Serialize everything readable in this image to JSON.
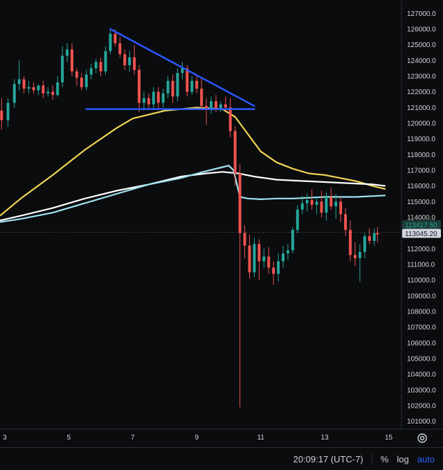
{
  "chart_data": {
    "type": "candlestick",
    "x_ticks": [
      "3",
      "5",
      "7",
      "9",
      "11",
      "13",
      "15"
    ],
    "y_ticks": [
      101000,
      102000,
      103000,
      104000,
      105000,
      106000,
      107000,
      108000,
      109000,
      110000,
      111000,
      112000,
      113000,
      114000,
      115000,
      116000,
      117000,
      118000,
      119000,
      120000,
      121000,
      122000,
      123000,
      124000,
      125000,
      126000,
      127000
    ],
    "ylim": [
      100500,
      127500
    ],
    "xlim": [
      2.85,
      15.4
    ],
    "candles": [
      {
        "t": 2.9,
        "o": 120800,
        "h": 121600,
        "l": 119600,
        "c": 120200
      },
      {
        "t": 3.1,
        "o": 120200,
        "h": 121600,
        "l": 119800,
        "c": 121300
      },
      {
        "t": 3.3,
        "o": 121300,
        "h": 122800,
        "l": 121000,
        "c": 122500
      },
      {
        "t": 3.45,
        "o": 122500,
        "h": 124000,
        "l": 122100,
        "c": 122800
      },
      {
        "t": 3.6,
        "o": 122800,
        "h": 123000,
        "l": 121900,
        "c": 122200
      },
      {
        "t": 3.75,
        "o": 122200,
        "h": 122700,
        "l": 121900,
        "c": 122300
      },
      {
        "t": 3.9,
        "o": 122300,
        "h": 122600,
        "l": 121900,
        "c": 122100
      },
      {
        "t": 4.05,
        "o": 122100,
        "h": 122500,
        "l": 121800,
        "c": 122400
      },
      {
        "t": 4.2,
        "o": 122400,
        "h": 122700,
        "l": 121600,
        "c": 121900
      },
      {
        "t": 4.35,
        "o": 121900,
        "h": 122300,
        "l": 121700,
        "c": 122000
      },
      {
        "t": 4.5,
        "o": 122000,
        "h": 122400,
        "l": 121500,
        "c": 121800
      },
      {
        "t": 4.65,
        "o": 121800,
        "h": 123000,
        "l": 121700,
        "c": 122600
      },
      {
        "t": 4.8,
        "o": 122600,
        "h": 124900,
        "l": 122300,
        "c": 124300
      },
      {
        "t": 4.95,
        "o": 124300,
        "h": 125100,
        "l": 123900,
        "c": 124700
      },
      {
        "t": 5.1,
        "o": 124700,
        "h": 125100,
        "l": 123000,
        "c": 123300
      },
      {
        "t": 5.25,
        "o": 123300,
        "h": 123500,
        "l": 122400,
        "c": 122900
      },
      {
        "t": 5.4,
        "o": 122900,
        "h": 123200,
        "l": 122100,
        "c": 122300
      },
      {
        "t": 5.55,
        "o": 122300,
        "h": 123400,
        "l": 122100,
        "c": 123100
      },
      {
        "t": 5.7,
        "o": 123100,
        "h": 123800,
        "l": 122800,
        "c": 123500
      },
      {
        "t": 5.85,
        "o": 123500,
        "h": 124100,
        "l": 123200,
        "c": 123900
      },
      {
        "t": 6.0,
        "o": 123900,
        "h": 124200,
        "l": 123000,
        "c": 123300
      },
      {
        "t": 6.15,
        "o": 123300,
        "h": 124900,
        "l": 123100,
        "c": 124600
      },
      {
        "t": 6.3,
        "o": 124600,
        "h": 126000,
        "l": 124400,
        "c": 125700
      },
      {
        "t": 6.45,
        "o": 125700,
        "h": 126000,
        "l": 124900,
        "c": 125100
      },
      {
        "t": 6.6,
        "o": 125100,
        "h": 125500,
        "l": 124200,
        "c": 124400
      },
      {
        "t": 6.75,
        "o": 124400,
        "h": 124700,
        "l": 123400,
        "c": 123700
      },
      {
        "t": 6.9,
        "o": 123700,
        "h": 124600,
        "l": 123300,
        "c": 124200
      },
      {
        "t": 7.05,
        "o": 124200,
        "h": 125000,
        "l": 123100,
        "c": 123400
      },
      {
        "t": 7.2,
        "o": 123400,
        "h": 123700,
        "l": 120700,
        "c": 121300
      },
      {
        "t": 7.35,
        "o": 121300,
        "h": 122000,
        "l": 120800,
        "c": 121600
      },
      {
        "t": 7.5,
        "o": 121600,
        "h": 121900,
        "l": 120900,
        "c": 121200
      },
      {
        "t": 7.65,
        "o": 121200,
        "h": 122300,
        "l": 120900,
        "c": 122000
      },
      {
        "t": 7.8,
        "o": 122000,
        "h": 122300,
        "l": 120900,
        "c": 121300
      },
      {
        "t": 7.95,
        "o": 121300,
        "h": 122200,
        "l": 121000,
        "c": 121900
      },
      {
        "t": 8.1,
        "o": 121900,
        "h": 123000,
        "l": 121600,
        "c": 122700
      },
      {
        "t": 8.25,
        "o": 122700,
        "h": 123100,
        "l": 121300,
        "c": 121700
      },
      {
        "t": 8.4,
        "o": 121700,
        "h": 123500,
        "l": 121400,
        "c": 123200
      },
      {
        "t": 8.55,
        "o": 123200,
        "h": 123900,
        "l": 122800,
        "c": 123500
      },
      {
        "t": 8.7,
        "o": 123500,
        "h": 123700,
        "l": 121700,
        "c": 122000
      },
      {
        "t": 8.85,
        "o": 122000,
        "h": 123000,
        "l": 121800,
        "c": 122700
      },
      {
        "t": 9.0,
        "o": 122700,
        "h": 123000,
        "l": 121900,
        "c": 122200
      },
      {
        "t": 9.15,
        "o": 122200,
        "h": 122900,
        "l": 120900,
        "c": 121100
      },
      {
        "t": 9.3,
        "o": 121100,
        "h": 121600,
        "l": 119900,
        "c": 120900
      },
      {
        "t": 9.45,
        "o": 120900,
        "h": 121700,
        "l": 120600,
        "c": 121400
      },
      {
        "t": 9.6,
        "o": 121400,
        "h": 121800,
        "l": 120700,
        "c": 120900
      },
      {
        "t": 9.75,
        "o": 120900,
        "h": 121400,
        "l": 120700,
        "c": 121200
      },
      {
        "t": 9.9,
        "o": 121200,
        "h": 121700,
        "l": 120800,
        "c": 121000
      },
      {
        "t": 10.05,
        "o": 121000,
        "h": 121600,
        "l": 119100,
        "c": 119500
      },
      {
        "t": 10.2,
        "o": 119500,
        "h": 119800,
        "l": 116000,
        "c": 116800
      },
      {
        "t": 10.35,
        "o": 116800,
        "h": 117400,
        "l": 101900,
        "c": 113000
      },
      {
        "t": 10.5,
        "o": 113000,
        "h": 113500,
        "l": 111400,
        "c": 112200
      },
      {
        "t": 10.65,
        "o": 112200,
        "h": 112900,
        "l": 110100,
        "c": 110500
      },
      {
        "t": 10.8,
        "o": 110500,
        "h": 112700,
        "l": 110200,
        "c": 112300
      },
      {
        "t": 10.95,
        "o": 112300,
        "h": 112600,
        "l": 110000,
        "c": 111200
      },
      {
        "t": 11.1,
        "o": 111200,
        "h": 112000,
        "l": 110800,
        "c": 111500
      },
      {
        "t": 11.25,
        "o": 111500,
        "h": 112100,
        "l": 110400,
        "c": 110800
      },
      {
        "t": 11.4,
        "o": 110800,
        "h": 111200,
        "l": 109700,
        "c": 110400
      },
      {
        "t": 11.55,
        "o": 110400,
        "h": 111700,
        "l": 109900,
        "c": 111200
      },
      {
        "t": 11.7,
        "o": 111200,
        "h": 112200,
        "l": 110800,
        "c": 111700
      },
      {
        "t": 11.85,
        "o": 111700,
        "h": 112300,
        "l": 111300,
        "c": 111900
      },
      {
        "t": 12.0,
        "o": 111900,
        "h": 113400,
        "l": 111700,
        "c": 113200
      },
      {
        "t": 12.15,
        "o": 113200,
        "h": 114800,
        "l": 113000,
        "c": 114500
      },
      {
        "t": 12.3,
        "o": 114500,
        "h": 115400,
        "l": 114200,
        "c": 114900
      },
      {
        "t": 12.45,
        "o": 114900,
        "h": 115500,
        "l": 114400,
        "c": 115100
      },
      {
        "t": 12.6,
        "o": 115100,
        "h": 115800,
        "l": 114500,
        "c": 114800
      },
      {
        "t": 12.75,
        "o": 114800,
        "h": 115300,
        "l": 114200,
        "c": 115000
      },
      {
        "t": 12.9,
        "o": 115000,
        "h": 115700,
        "l": 114000,
        "c": 114300
      },
      {
        "t": 13.05,
        "o": 114300,
        "h": 115600,
        "l": 113800,
        "c": 115300
      },
      {
        "t": 13.2,
        "o": 115300,
        "h": 115900,
        "l": 114500,
        "c": 114700
      },
      {
        "t": 13.35,
        "o": 114700,
        "h": 115500,
        "l": 113900,
        "c": 115000
      },
      {
        "t": 13.5,
        "o": 115000,
        "h": 115300,
        "l": 113700,
        "c": 114200
      },
      {
        "t": 13.65,
        "o": 114200,
        "h": 114600,
        "l": 112800,
        "c": 113200
      },
      {
        "t": 13.8,
        "o": 113200,
        "h": 113800,
        "l": 111200,
        "c": 111600
      },
      {
        "t": 13.95,
        "o": 111600,
        "h": 112400,
        "l": 110900,
        "c": 111400
      },
      {
        "t": 14.1,
        "o": 111400,
        "h": 112300,
        "l": 109900,
        "c": 111800
      },
      {
        "t": 14.25,
        "o": 111800,
        "h": 113000,
        "l": 111400,
        "c": 112800
      },
      {
        "t": 14.4,
        "o": 112800,
        "h": 113300,
        "l": 112300,
        "c": 112500
      },
      {
        "t": 14.55,
        "o": 112500,
        "h": 113300,
        "l": 112200,
        "c": 113000
      },
      {
        "t": 14.65,
        "o": 113000,
        "h": 113400,
        "l": 112400,
        "c": 112900
      }
    ],
    "moving_averages": [
      {
        "color": "#f2d654",
        "points": [
          [
            2.85,
            114100
          ],
          [
            3.5,
            115200
          ],
          [
            4.5,
            116700
          ],
          [
            5.5,
            118300
          ],
          [
            6.5,
            119700
          ],
          [
            7.0,
            120300
          ],
          [
            8.0,
            120800
          ],
          [
            9.0,
            121000
          ],
          [
            9.8,
            120900
          ],
          [
            10.2,
            120400
          ],
          [
            10.6,
            119300
          ],
          [
            11.0,
            118200
          ],
          [
            11.5,
            117500
          ],
          [
            12.0,
            117100
          ],
          [
            12.5,
            116800
          ],
          [
            13.0,
            116700
          ],
          [
            13.5,
            116500
          ],
          [
            14.0,
            116300
          ],
          [
            14.5,
            116000
          ],
          [
            14.9,
            115800
          ]
        ]
      },
      {
        "color": "#ffffff",
        "points": [
          [
            2.85,
            113800
          ],
          [
            3.5,
            114100
          ],
          [
            4.5,
            114600
          ],
          [
            5.5,
            115200
          ],
          [
            6.5,
            115700
          ],
          [
            7.5,
            116100
          ],
          [
            8.5,
            116600
          ],
          [
            9.3,
            116800
          ],
          [
            9.8,
            116900
          ],
          [
            10.3,
            116800
          ],
          [
            10.8,
            116600
          ],
          [
            11.5,
            116400
          ],
          [
            12.5,
            116300
          ],
          [
            13.5,
            116200
          ],
          [
            14.5,
            116100
          ],
          [
            14.9,
            116000
          ]
        ]
      },
      {
        "color": "#9ee6f2",
        "points": [
          [
            2.85,
            113700
          ],
          [
            3.5,
            113900
          ],
          [
            4.5,
            114300
          ],
          [
            5.5,
            114900
          ],
          [
            6.5,
            115500
          ],
          [
            7.5,
            116100
          ],
          [
            8.5,
            116500
          ],
          [
            9.2,
            116900
          ],
          [
            9.8,
            117200
          ],
          [
            10.0,
            117300
          ],
          [
            10.15,
            117000
          ],
          [
            10.35,
            115300
          ],
          [
            10.6,
            115200
          ],
          [
            11.0,
            115150
          ],
          [
            11.5,
            115200
          ],
          [
            12.0,
            115200
          ],
          [
            13.0,
            115300
          ],
          [
            14.0,
            115300
          ],
          [
            14.9,
            115400
          ]
        ]
      }
    ],
    "trendlines": [
      {
        "color": "#2b59ff",
        "from": [
          6.3,
          126000
        ],
        "to": [
          10.8,
          121100
        ]
      },
      {
        "color": "#2b59ff",
        "from": [
          5.55,
          120900
        ],
        "to": [
          10.8,
          120900
        ]
      }
    ],
    "price_labels": [
      {
        "value": 113417.5,
        "text": "113417.50",
        "bg": "#1b3b37",
        "fg": "#26a69a"
      },
      {
        "value": 113045.2,
        "text": "113045.20",
        "bg": "#d1d4dc",
        "fg": "#131722"
      }
    ],
    "up_color": "#26a69a",
    "down_color": "#ef5350"
  },
  "status_bar": {
    "time": "20:09:17 (UTC-7)",
    "percent": "%",
    "log": "log",
    "auto": "auto"
  },
  "icons": {
    "settings": "gear-icon"
  }
}
